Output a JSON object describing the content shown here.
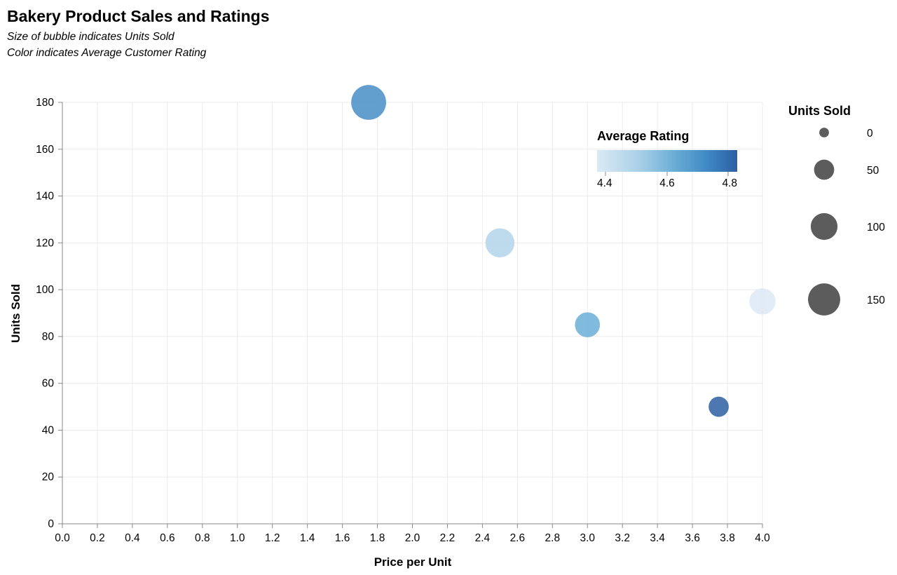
{
  "chart_data": {
    "type": "scatter",
    "title": "Bakery Product Sales and Ratings",
    "subtitles": [
      "Size of bubble indicates Units Sold",
      "Color indicates Average Customer Rating"
    ],
    "xlabel": "Price per Unit",
    "ylabel": "Units Sold",
    "xlim": [
      0,
      4.0
    ],
    "ylim": [
      0,
      180
    ],
    "x_ticks": [
      "0.0",
      "0.2",
      "0.4",
      "0.6",
      "0.8",
      "1.0",
      "1.2",
      "1.4",
      "1.6",
      "1.8",
      "2.0",
      "2.2",
      "2.4",
      "2.6",
      "2.8",
      "3.0",
      "3.2",
      "3.4",
      "3.6",
      "3.8",
      "4.0"
    ],
    "y_ticks": [
      "0",
      "20",
      "40",
      "60",
      "80",
      "100",
      "120",
      "140",
      "160",
      "180"
    ],
    "grid": true,
    "points": [
      {
        "x": 1.75,
        "y": 180,
        "size": 180,
        "rating": 4.7
      },
      {
        "x": 2.5,
        "y": 120,
        "size": 120,
        "rating": 4.45
      },
      {
        "x": 3.0,
        "y": 85,
        "size": 85,
        "rating": 4.6
      },
      {
        "x": 4.0,
        "y": 95,
        "size": 95,
        "rating": 4.35
      },
      {
        "x": 3.75,
        "y": 50,
        "size": 50,
        "rating": 4.85
      }
    ],
    "color_legend": {
      "title": "Average Rating",
      "labels": [
        "4.4",
        "4.6",
        "4.8"
      ],
      "domain": [
        4.35,
        4.85
      ],
      "colors": [
        "#dce9f5",
        "#a9d0e7",
        "#6aaed6",
        "#3d86c2",
        "#2e5fa3"
      ]
    },
    "size_legend": {
      "title": "Units Sold",
      "labels": [
        "0",
        "50",
        "100",
        "150"
      ],
      "values": [
        0,
        50,
        100,
        150
      ]
    },
    "bubble_color": "#3a7ebf",
    "legend_symbol_color": "#5c5c5c"
  }
}
